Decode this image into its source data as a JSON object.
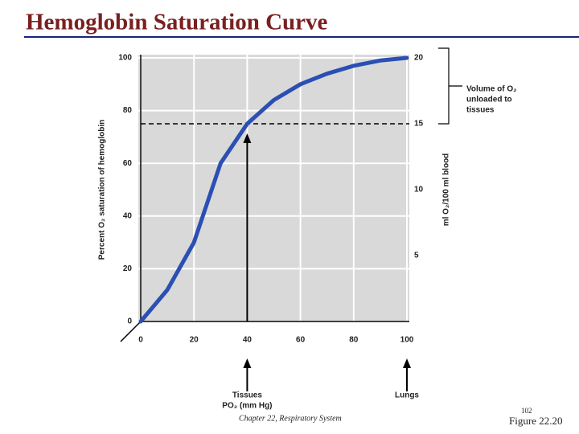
{
  "slide": {
    "title": "Hemoglobin Saturation Curve",
    "footer": "Chapter 22, Respiratory System",
    "page_number": "102",
    "figure": "Figure 22.20"
  },
  "chart_data": {
    "type": "line",
    "x": [
      0,
      10,
      20,
      30,
      40,
      50,
      60,
      70,
      80,
      90,
      100
    ],
    "series": [
      {
        "color": "#2b4fb3",
        "values": [
          0,
          12,
          30,
          60,
          75,
          84,
          90,
          94,
          97,
          99,
          100
        ]
      }
    ],
    "xlim": [
      0,
      100
    ],
    "xticks": [
      0,
      20,
      40,
      60,
      80,
      100
    ],
    "ylim": [
      0,
      100
    ],
    "yticks": [
      0,
      20,
      40,
      60,
      80,
      100
    ],
    "y2lim": [
      0,
      20
    ],
    "y2ticks": [
      5,
      10,
      15,
      20
    ],
    "ylabel": "Percent O₂ saturation of hemoglobin",
    "y2label": "ml O₂/100 ml blood",
    "xlabel": "PO₂ (mm Hg)",
    "reference_y": 75,
    "markers": [
      {
        "label": "Tissues",
        "x": 40
      },
      {
        "label": "Lungs",
        "x": 100
      }
    ],
    "bracket_label": [
      "Volume of O₂",
      "unloaded to",
      "tissues"
    ],
    "grid": true
  }
}
